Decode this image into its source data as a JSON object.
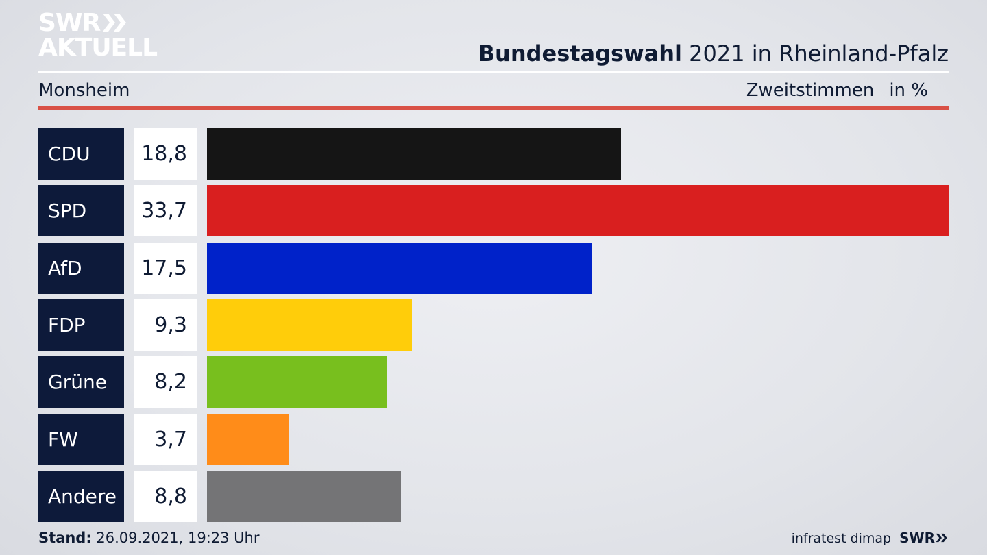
{
  "logo": {
    "line1": "SWR",
    "line2": "AKTUELL"
  },
  "header": {
    "title_bold": "Bundestagswahl",
    "title_rest": " 2021 in Rheinland-Pfalz",
    "subtitle": "Monsheim",
    "measure": "Zweitstimmen",
    "unit": "in %"
  },
  "colors": {
    "label_bg": "#0d1a3a",
    "accent_rule": "#d95146"
  },
  "chart_data": {
    "type": "bar",
    "orientation": "horizontal",
    "categories": [
      "CDU",
      "SPD",
      "AfD",
      "FDP",
      "Grüne",
      "FW",
      "Andere"
    ],
    "values": [
      18.8,
      33.7,
      17.5,
      9.3,
      8.2,
      3.7,
      8.8
    ],
    "value_labels": [
      "18,8",
      "33,7",
      "17,5",
      "9,3",
      "8,2",
      "3,7",
      "8,8"
    ],
    "colors": [
      "#151515",
      "#d91f1f",
      "#0022c9",
      "#ffcd0a",
      "#78bf1e",
      "#ff8c19",
      "#747476"
    ],
    "title": "Bundestagswahl 2021 in Rheinland-Pfalz",
    "xlabel": "",
    "ylabel": "",
    "xlim": [
      0,
      33.7
    ]
  },
  "footer": {
    "stand_label": "Stand:",
    "stand_value": " 26.09.2021, 19:23 Uhr",
    "source": "infratest dimap",
    "brand": "SWR"
  }
}
